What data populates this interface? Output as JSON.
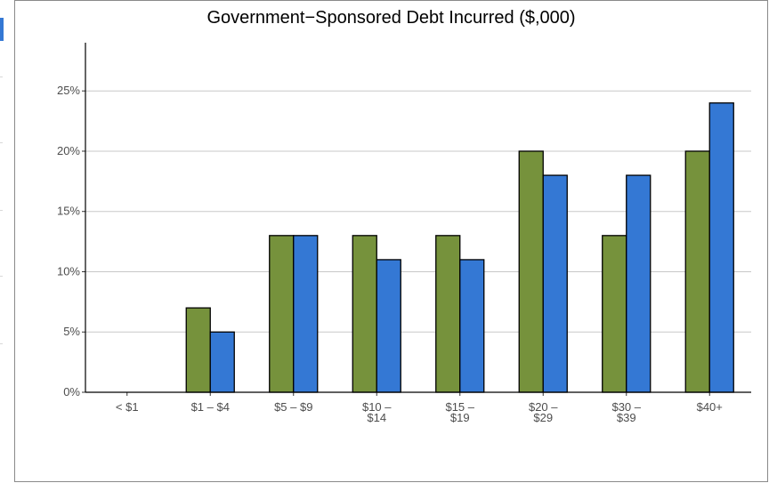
{
  "chart_data": {
    "type": "bar",
    "title": "Government−Sponsored Debt Incurred ($,000)",
    "xlabel": "",
    "ylabel": "",
    "categories": [
      [
        "< $1"
      ],
      [
        "$1 – $4"
      ],
      [
        "$5 – $9"
      ],
      [
        "$10 –",
        "$14"
      ],
      [
        "$15 –",
        "$19"
      ],
      [
        "$20 –",
        "$29"
      ],
      [
        "$30 –",
        "$39"
      ],
      [
        "$40+"
      ]
    ],
    "series": [
      {
        "color": "#76923c",
        "values": [
          0,
          7,
          13,
          13,
          13,
          20,
          13,
          20
        ]
      },
      {
        "color": "#3478d4",
        "values": [
          0,
          5,
          13,
          11,
          11,
          18,
          18,
          24
        ]
      }
    ],
    "ylim": [
      0,
      29
    ],
    "yticks": [
      0,
      5,
      10,
      15,
      20,
      25
    ],
    "ytick_labels": [
      "0%",
      "5%",
      "10%",
      "15%",
      "20%",
      "25%"
    ],
    "grid": true,
    "legend": "none"
  }
}
